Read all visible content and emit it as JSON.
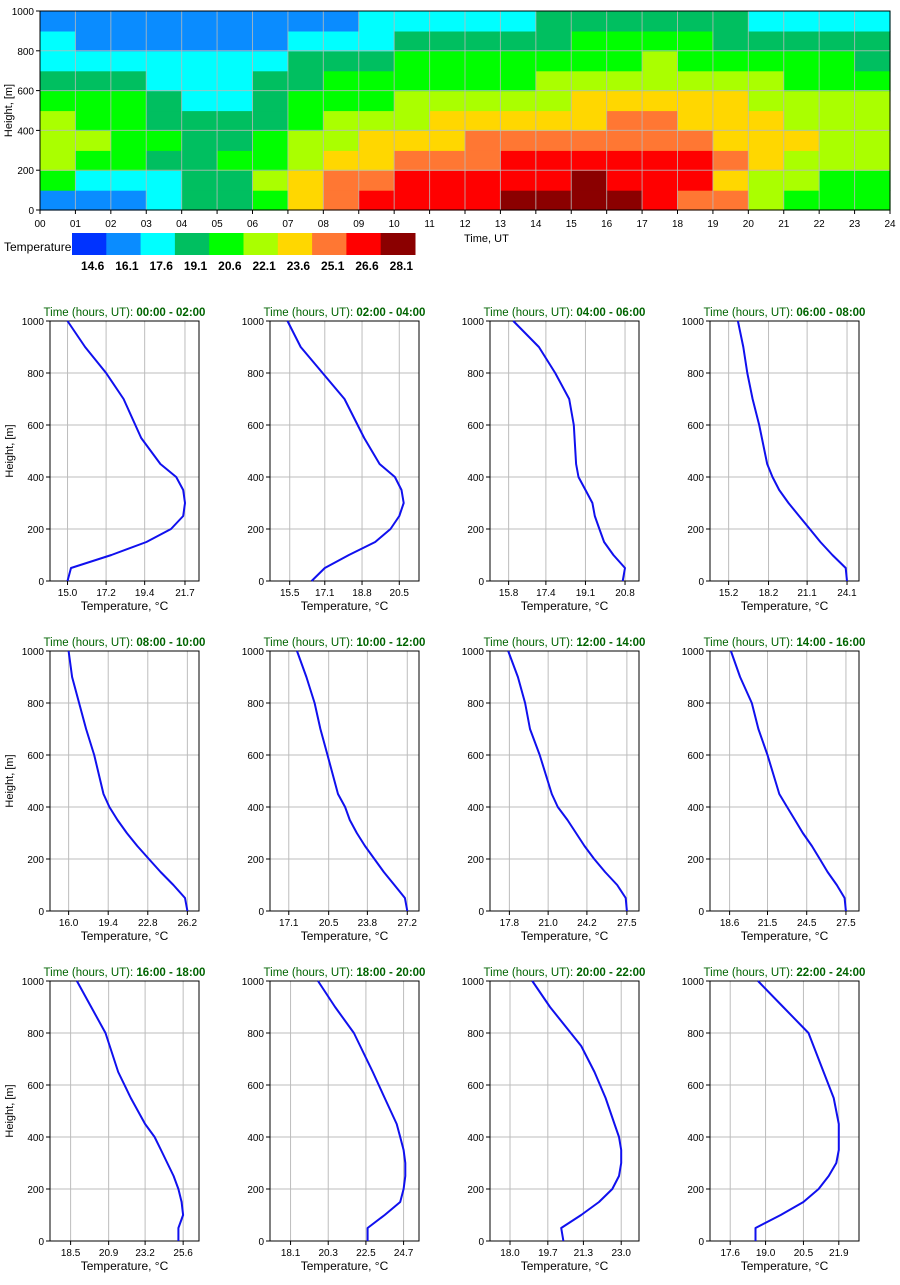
{
  "heatmap": {
    "ylabel": "Height, [m]",
    "xlabel": "Time, UT",
    "x_ticks": [
      "00",
      "01",
      "02",
      "03",
      "04",
      "05",
      "06",
      "07",
      "08",
      "09",
      "10",
      "11",
      "12",
      "13",
      "14",
      "15",
      "16",
      "17",
      "18",
      "19",
      "20",
      "21",
      "22",
      "23",
      "24"
    ],
    "y_ticks": [
      "0",
      "200",
      "400",
      "600",
      "800",
      "1000"
    ],
    "legend_title": "Temperature, °C",
    "legend_values": [
      "14.6",
      "16.1",
      "17.6",
      "19.1",
      "20.6",
      "22.1",
      "23.6",
      "25.1",
      "26.6",
      "28.1"
    ],
    "colors": [
      "#0033ff",
      "#0a8cff",
      "#00ffff",
      "#00bf60",
      "#00ff00",
      "#aaff00",
      "#ffd700",
      "#ff7733",
      "#ff0000",
      "#8b0000"
    ]
  },
  "chart_data": {
    "type": "heatmap",
    "x": [
      0.5,
      1.5,
      2.5,
      3.5,
      4.5,
      5.5,
      6.5,
      7.5,
      8.5,
      9.5,
      10.5,
      11.5,
      12.5,
      13.5,
      14.5,
      15.5,
      16.5,
      17.5,
      18.5,
      19.5,
      20.5,
      21.5,
      22.5,
      23.5
    ],
    "y": [
      50,
      150,
      250,
      350,
      450,
      550,
      650,
      750,
      850,
      950
    ],
    "z": [
      [
        15.3,
        15.5,
        15.8,
        17.0,
        18.0,
        18.8,
        20.5,
        22.5,
        24.0,
        25.2,
        25.8,
        26.0,
        26.5,
        26.8,
        27.0,
        27.2,
        27.0,
        25.5,
        25.0,
        24.5,
        21.5,
        20.5,
        20.0,
        19.3
      ],
      [
        19.5,
        17.5,
        16.8,
        17.5,
        18.5,
        19.0,
        20.8,
        22.6,
        24.0,
        24.8,
        25.2,
        25.5,
        25.5,
        26.0,
        26.5,
        26.6,
        25.5,
        25.3,
        25.3,
        23.0,
        22.0,
        21.0,
        20.5,
        20.0
      ],
      [
        21.5,
        20.5,
        19.5,
        19.0,
        19.0,
        19.5,
        20.5,
        22.0,
        22.8,
        23.5,
        24.0,
        24.5,
        24.8,
        25.2,
        25.5,
        25.6,
        25.3,
        25.3,
        25.3,
        24.0,
        22.6,
        21.6,
        21.2,
        21.0
      ],
      [
        21.2,
        20.6,
        20.2,
        19.5,
        18.8,
        18.5,
        19.5,
        20.6,
        21.5,
        22.5,
        23.0,
        23.5,
        24.0,
        24.5,
        24.8,
        25.0,
        25.0,
        24.5,
        24.0,
        23.5,
        22.8,
        22.2,
        21.7,
        21.5
      ],
      [
        20.8,
        20.0,
        19.5,
        19.0,
        18.0,
        18.0,
        19.0,
        20.0,
        20.8,
        21.2,
        21.6,
        22.2,
        22.6,
        23.0,
        23.3,
        23.5,
        23.8,
        23.7,
        23.5,
        23.2,
        22.6,
        22.0,
        21.6,
        21.2
      ],
      [
        20.0,
        19.3,
        19.2,
        18.0,
        17.5,
        17.3,
        18.5,
        19.5,
        20.0,
        20.5,
        20.8,
        21.0,
        21.2,
        21.5,
        22.0,
        22.5,
        22.5,
        22.8,
        22.8,
        22.5,
        22.0,
        21.5,
        21.0,
        20.8
      ],
      [
        18.8,
        18.5,
        18.5,
        17.5,
        17.2,
        17.0,
        17.8,
        18.8,
        19.2,
        19.5,
        19.8,
        20.0,
        20.2,
        20.5,
        20.8,
        21.5,
        21.7,
        22.0,
        21.8,
        21.5,
        21.0,
        20.5,
        20.0,
        19.7
      ],
      [
        17.5,
        17.2,
        17.2,
        17.0,
        16.5,
        16.2,
        17.0,
        18.0,
        18.5,
        18.5,
        19.2,
        19.4,
        19.5,
        19.7,
        20.0,
        20.3,
        20.5,
        20.8,
        20.5,
        20.2,
        19.8,
        19.5,
        19.3,
        19.0
      ],
      [
        16.5,
        16.0,
        15.8,
        15.8,
        15.8,
        15.5,
        15.8,
        16.5,
        17.2,
        17.5,
        18.0,
        18.3,
        18.8,
        18.8,
        19.0,
        19.2,
        19.3,
        19.4,
        19.2,
        19.0,
        18.8,
        18.5,
        18.2,
        18.0
      ],
      [
        15.3,
        15.0,
        15.0,
        14.8,
        15.0,
        14.9,
        15.0,
        15.5,
        16.0,
        16.5,
        17.0,
        17.2,
        17.5,
        17.5,
        17.8,
        18.0,
        18.0,
        18.2,
        18.0,
        17.8,
        17.5,
        17.3,
        17.0,
        17.0
      ]
    ],
    "xlabel": "Time, UT",
    "ylabel": "Height, [m]",
    "xlim": [
      0,
      24
    ],
    "ylim": [
      0,
      1000
    ],
    "colorbar_label": "Temperature, °C",
    "colorbar_ticks": [
      14.6,
      16.1,
      17.6,
      19.1,
      20.6,
      22.1,
      23.6,
      25.1,
      26.6,
      28.1
    ],
    "profiles": [
      {
        "title_prefix": "Time (hours, UT):",
        "title_range": "00:00 - 02:00",
        "xticks": [
          "15.0",
          "17.2",
          "19.4",
          "21.7"
        ],
        "xlim": [
          14.0,
          22.5
        ],
        "temp": [
          15.0,
          15.2,
          17.5,
          19.5,
          20.9,
          21.6,
          21.7,
          21.6,
          21.2,
          20.3,
          19.2,
          18.2,
          17.2,
          16.0,
          15.0
        ],
        "height": [
          0,
          50,
          100,
          150,
          200,
          250,
          300,
          350,
          400,
          450,
          550,
          700,
          800,
          900,
          1000
        ]
      },
      {
        "title_prefix": "Time (hours, UT):",
        "title_range": "02:00 - 04:00",
        "xticks": [
          "15.5",
          "17.1",
          "18.8",
          "20.5"
        ],
        "xlim": [
          14.6,
          21.4
        ],
        "temp": [
          16.5,
          17.1,
          18.2,
          19.4,
          20.1,
          20.5,
          20.7,
          20.6,
          20.3,
          19.6,
          18.9,
          18.0,
          17.0,
          16.0,
          15.4
        ],
        "height": [
          0,
          50,
          100,
          150,
          200,
          250,
          300,
          350,
          400,
          450,
          550,
          700,
          800,
          900,
          1000
        ]
      },
      {
        "title_prefix": "Time (hours, UT):",
        "title_range": "04:00 - 06:00",
        "xticks": [
          "15.8",
          "17.4",
          "19.1",
          "20.8"
        ],
        "xlim": [
          15.0,
          21.4
        ],
        "temp": [
          20.7,
          20.8,
          20.3,
          19.9,
          19.7,
          19.5,
          19.4,
          19.1,
          18.8,
          18.7,
          18.6,
          18.4,
          17.8,
          17.1,
          16.0
        ],
        "height": [
          0,
          50,
          100,
          150,
          200,
          250,
          300,
          350,
          400,
          450,
          600,
          700,
          800,
          900,
          1000
        ]
      },
      {
        "title_prefix": "Time (hours, UT):",
        "title_range": "06:00 - 08:00",
        "xticks": [
          "15.2",
          "18.2",
          "21.1",
          "24.1"
        ],
        "xlim": [
          13.8,
          25.0
        ],
        "temp": [
          24.1,
          24.0,
          23.0,
          22.1,
          21.3,
          20.5,
          19.7,
          19.0,
          18.5,
          18.1,
          17.5,
          17.0,
          16.6,
          16.3,
          15.9
        ],
        "height": [
          0,
          50,
          100,
          150,
          200,
          250,
          300,
          350,
          400,
          450,
          600,
          700,
          800,
          900,
          1000
        ]
      },
      {
        "title_prefix": "Time (hours, UT):",
        "title_range": "08:00 - 10:00",
        "xticks": [
          "16.0",
          "19.4",
          "22.8",
          "26.2"
        ],
        "xlim": [
          14.4,
          27.2
        ],
        "temp": [
          26.2,
          26.0,
          25.0,
          23.9,
          22.9,
          21.9,
          21.0,
          20.2,
          19.5,
          19.0,
          18.2,
          17.5,
          16.9,
          16.3,
          16.0
        ],
        "height": [
          0,
          50,
          100,
          150,
          200,
          250,
          300,
          350,
          400,
          450,
          600,
          700,
          800,
          900,
          1000
        ]
      },
      {
        "title_prefix": "Time (hours, UT):",
        "title_range": "10:00 - 12:00",
        "xticks": [
          "17.1",
          "20.5",
          "23.8",
          "27.2"
        ],
        "xlim": [
          15.5,
          28.2
        ],
        "temp": [
          27.2,
          27.0,
          26.1,
          25.2,
          24.4,
          23.6,
          22.9,
          22.3,
          21.9,
          21.3,
          20.4,
          19.8,
          19.3,
          18.6,
          17.8
        ],
        "height": [
          0,
          50,
          100,
          150,
          200,
          250,
          300,
          350,
          400,
          450,
          600,
          700,
          800,
          900,
          1000
        ]
      },
      {
        "title_prefix": "Time (hours, UT):",
        "title_range": "12:00 - 14:00",
        "xticks": [
          "17.8",
          "21.0",
          "24.2",
          "27.5"
        ],
        "xlim": [
          16.2,
          28.5
        ],
        "temp": [
          27.5,
          27.4,
          26.7,
          25.7,
          24.8,
          24.0,
          23.3,
          22.6,
          21.8,
          21.3,
          20.3,
          19.5,
          19.1,
          18.5,
          17.7
        ],
        "height": [
          0,
          50,
          100,
          150,
          200,
          250,
          300,
          350,
          400,
          450,
          600,
          700,
          800,
          900,
          1000
        ]
      },
      {
        "title_prefix": "Time (hours, UT):",
        "title_range": "14:00 - 16:00",
        "xticks": [
          "18.6",
          "21.5",
          "24.5",
          "27.5"
        ],
        "xlim": [
          17.1,
          28.5
        ],
        "temp": [
          27.5,
          27.4,
          26.8,
          26.1,
          25.5,
          24.9,
          24.2,
          23.6,
          23.0,
          22.4,
          21.5,
          20.8,
          20.3,
          19.4,
          18.7
        ],
        "height": [
          0,
          50,
          100,
          150,
          200,
          250,
          300,
          350,
          400,
          450,
          600,
          700,
          800,
          900,
          1000
        ]
      },
      {
        "title_prefix": "Time (hours, UT):",
        "title_range": "16:00 - 18:00",
        "xticks": [
          "18.5",
          "20.9",
          "23.2",
          "25.6"
        ],
        "xlim": [
          17.2,
          26.6
        ],
        "temp": [
          25.3,
          25.3,
          25.6,
          25.5,
          25.3,
          25.0,
          24.6,
          24.2,
          23.8,
          23.2,
          22.3,
          21.5,
          20.7,
          19.8,
          18.9
        ],
        "height": [
          0,
          50,
          100,
          150,
          200,
          250,
          300,
          350,
          400,
          450,
          550,
          650,
          800,
          900,
          1000
        ]
      },
      {
        "title_prefix": "Time (hours, UT):",
        "title_range": "18:00 - 20:00",
        "xticks": [
          "18.1",
          "20.3",
          "22.5",
          "24.7"
        ],
        "xlim": [
          16.9,
          25.6
        ],
        "temp": [
          22.6,
          22.6,
          23.6,
          24.5,
          24.7,
          24.8,
          24.8,
          24.7,
          24.5,
          24.3,
          23.6,
          22.9,
          21.8,
          20.7,
          19.7
        ],
        "height": [
          0,
          50,
          100,
          150,
          200,
          250,
          300,
          350,
          400,
          450,
          550,
          650,
          800,
          900,
          1000
        ]
      },
      {
        "title_prefix": "Time (hours, UT):",
        "title_range": "20:00 - 22:00",
        "xticks": [
          "18.0",
          "19.7",
          "21.3",
          "23.0"
        ],
        "xlim": [
          17.1,
          23.8
        ],
        "temp": [
          20.4,
          20.3,
          21.2,
          22.0,
          22.6,
          22.9,
          23.0,
          23.0,
          22.9,
          22.7,
          22.3,
          21.8,
          21.2,
          19.8,
          19.0
        ],
        "height": [
          0,
          50,
          100,
          150,
          200,
          250,
          300,
          350,
          400,
          450,
          550,
          650,
          750,
          900,
          1000
        ]
      },
      {
        "title_prefix": "Time (hours, UT):",
        "title_range": "22:00 - 24:00",
        "xticks": [
          "17.6",
          "19.0",
          "20.5",
          "21.9"
        ],
        "xlim": [
          16.8,
          22.7
        ],
        "temp": [
          18.6,
          18.6,
          19.6,
          20.5,
          21.1,
          21.5,
          21.8,
          21.9,
          21.9,
          21.9,
          21.7,
          21.3,
          20.7,
          19.7,
          18.7
        ],
        "height": [
          0,
          50,
          100,
          150,
          200,
          250,
          300,
          350,
          400,
          450,
          550,
          650,
          800,
          900,
          1000
        ]
      }
    ]
  },
  "profile_axes": {
    "ylabel": "Height, [m]",
    "xlabel": "Temperature, °C",
    "y_ticks": [
      "0",
      "200",
      "400",
      "600",
      "800",
      "1000"
    ],
    "line_color": "#1010ee",
    "title_color": "#006400"
  }
}
